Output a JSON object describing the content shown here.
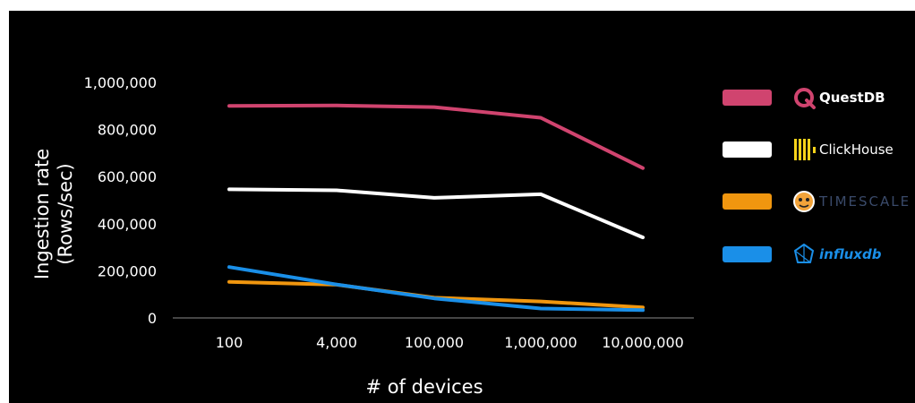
{
  "chart_data": {
    "type": "line",
    "categories": [
      "100",
      "4,000",
      "100,000",
      "1,000,000",
      "10,000,000"
    ],
    "xlabel": "# of devices",
    "ylabel_lines": [
      "Ingestion rate",
      "(Rows/sec)"
    ],
    "ylim": [
      0,
      1000000
    ],
    "yticks": [
      0,
      200000,
      400000,
      600000,
      800000,
      1000000
    ],
    "ytick_labels": [
      "0",
      "200,000",
      "400,000",
      "600,000",
      "800,000",
      "1,000,000"
    ],
    "grid": false,
    "legend_position": "right",
    "series": [
      {
        "name": "QuestDB",
        "color": "#d0446f",
        "icon": "questdb-logo-icon",
        "values": [
          900000,
          902000,
          895000,
          850000,
          636000
        ]
      },
      {
        "name": "ClickHouse",
        "color": "#ffffff",
        "icon": "clickhouse-logo-icon",
        "values": [
          546000,
          542000,
          510000,
          525000,
          342000
        ]
      },
      {
        "name": "TIMESCALE",
        "color": "#f0960f",
        "icon": "timescale-logo-icon",
        "values": [
          153000,
          141000,
          86000,
          70000,
          45000
        ]
      },
      {
        "name": "influxdb",
        "color": "#1a8fe8",
        "icon": "influxdb-logo-icon",
        "values": [
          216000,
          142000,
          83000,
          40000,
          33000
        ]
      }
    ]
  }
}
